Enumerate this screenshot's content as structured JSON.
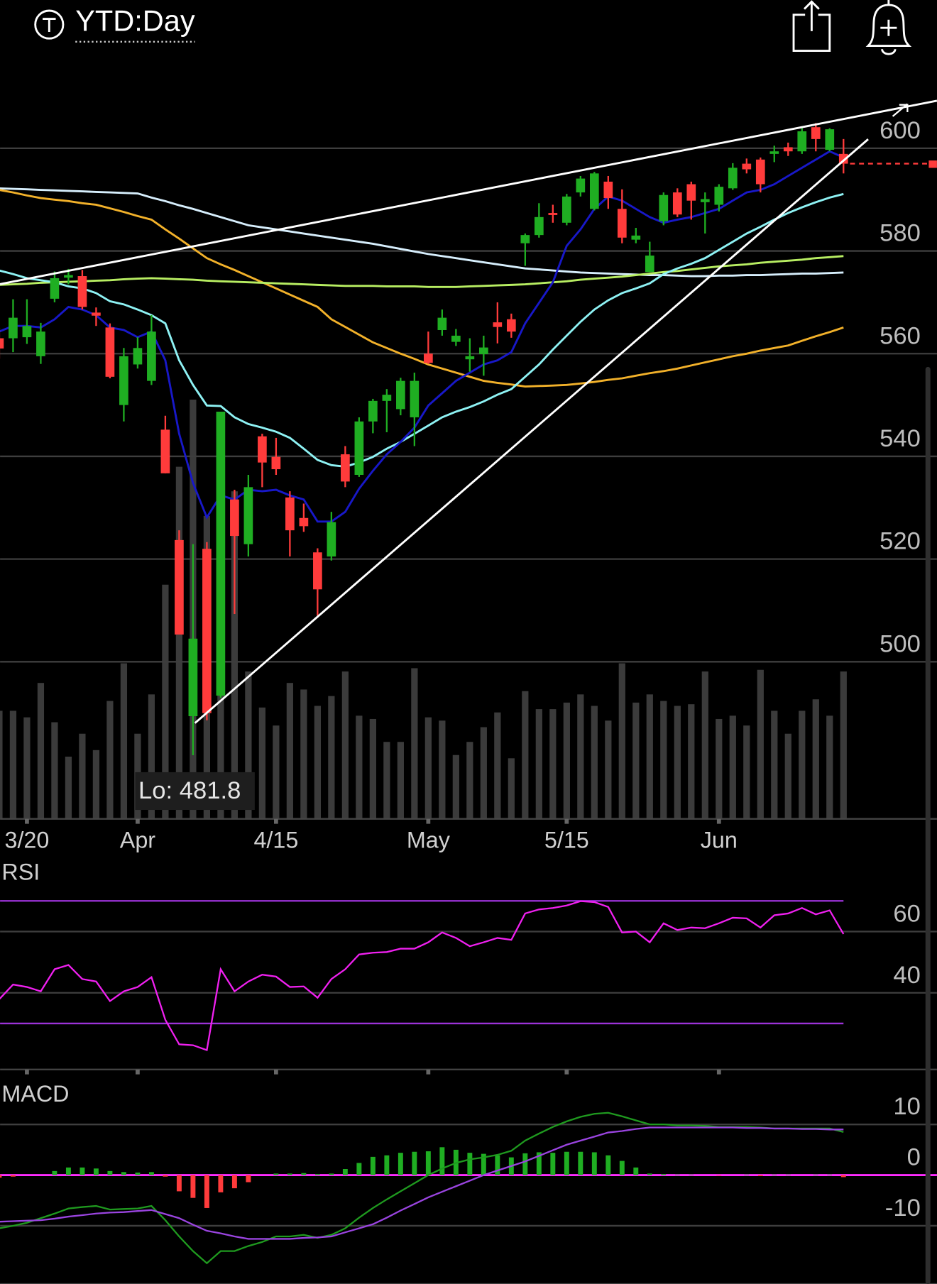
{
  "header": {
    "title": "YTD:Day"
  },
  "chart_data": [
    {
      "type": "candlestick",
      "categories": [
        null,
        null,
        "3/20",
        null,
        null,
        null,
        null,
        null,
        null,
        null,
        "Apr",
        null,
        null,
        null,
        null,
        null,
        null,
        null,
        null,
        null,
        "4/15",
        null,
        null,
        null,
        null,
        null,
        null,
        null,
        null,
        null,
        null,
        "May",
        null,
        null,
        null,
        null,
        null,
        null,
        null,
        null,
        null,
        "5/15",
        null,
        null,
        null,
        null,
        null,
        null,
        null,
        null,
        null,
        null,
        "Jun",
        null,
        null,
        null,
        null,
        null,
        null,
        null,
        null,
        null
      ],
      "open": [
        563,
        563,
        563.2,
        559.5,
        570.7,
        574.8,
        575.1,
        568,
        565.1,
        550,
        557.9,
        554.7,
        545.2,
        523.7,
        489.4,
        522,
        493.4,
        531.6,
        522.9,
        543.9,
        539.9,
        532,
        528,
        521.3,
        520.5,
        540.4,
        536.4,
        546.8,
        550.8,
        549.2,
        547.6,
        560,
        564.6,
        562.3,
        558.9,
        559.9,
        566.1,
        566.7,
        581.5,
        583.1,
        587.4,
        585.5,
        591.4,
        588.2,
        593.5,
        588.2,
        582.2,
        575.9,
        585.8,
        591.4,
        593,
        589.5,
        589,
        592.2,
        597,
        597.8,
        598.9,
        600.2,
        599.4,
        604.1,
        599.7,
        598.9
      ],
      "high": [
        565,
        570.6,
        570.6,
        566,
        576,
        576.5,
        576.3,
        569,
        565.9,
        561.1,
        563.2,
        567.5,
        547.9,
        525.6,
        522.9,
        523.3,
        548.7,
        533.5,
        536.4,
        544.4,
        543.6,
        533.2,
        530.8,
        522.1,
        529.2,
        542,
        547.6,
        551.2,
        553.1,
        555.3,
        556.3,
        564.3,
        568.6,
        564.8,
        563,
        563.5,
        570,
        567.8,
        583.4,
        589.3,
        589,
        591.1,
        594.6,
        595.4,
        594.6,
        592,
        584.5,
        581.8,
        591.4,
        592.2,
        593.5,
        591.4,
        593,
        597.1,
        598,
        598.2,
        600.5,
        601.1,
        604.1,
        604.9,
        603.9,
        601.8
      ],
      "low": [
        559,
        560.3,
        561.9,
        558,
        570,
        573.5,
        568.6,
        565.4,
        555.2,
        546.8,
        557.1,
        553.9,
        536.7,
        505.3,
        481.8,
        488.6,
        493,
        509.3,
        520.5,
        534,
        536.4,
        520.5,
        525.3,
        509,
        519.7,
        534,
        536,
        544.5,
        544.7,
        548,
        542,
        558,
        563.5,
        561.5,
        556.5,
        555.7,
        562,
        563.1,
        577.1,
        582.6,
        585.5,
        585,
        590.6,
        587.9,
        588.2,
        581.5,
        581.5,
        575.9,
        585,
        586.6,
        586.1,
        583.4,
        587.7,
        591.9,
        595.1,
        591.4,
        597.3,
        598.5,
        598.9,
        599.4,
        599.4,
        595.1
      ],
      "close": [
        561,
        567,
        565.4,
        564.3,
        574.7,
        575.3,
        569.1,
        567.4,
        555.5,
        559.5,
        561.1,
        564.3,
        536.7,
        505.3,
        504.5,
        490,
        548.7,
        524.5,
        534,
        538.8,
        537.5,
        525.6,
        526.4,
        514.1,
        527.2,
        535.1,
        546.8,
        550.8,
        552,
        554.7,
        554.7,
        558.2,
        567,
        563.5,
        559.5,
        561.2,
        565.2,
        564.3,
        583.1,
        586.6,
        587,
        590.6,
        594.1,
        595.1,
        590.3,
        582.6,
        583,
        579.1,
        590.9,
        587.1,
        589.8,
        590.1,
        592.5,
        596.2,
        595.9,
        593,
        599.4,
        599.4,
        603.3,
        601.8,
        603.7,
        597
      ],
      "volume": [
        66,
        66,
        62,
        83,
        59,
        38,
        52,
        42,
        72,
        95,
        52,
        76,
        143,
        215,
        256,
        185,
        230,
        200,
        90,
        68,
        57,
        83,
        79,
        69,
        75,
        90,
        63,
        61,
        47,
        47,
        92,
        62,
        60,
        39,
        47,
        56,
        65,
        37,
        78,
        67,
        67,
        71,
        76,
        69,
        60,
        95,
        71,
        76,
        72,
        69,
        70,
        90,
        61,
        63,
        57,
        91,
        66,
        52,
        66,
        73,
        63,
        90
      ],
      "series": [
        {
          "color": "#d6eefc",
          "values": [
            592.2,
            592.1,
            592.0,
            591.9,
            591.8,
            591.7,
            591.6,
            591.5,
            591.4,
            591.3,
            591.2,
            590.4,
            589.7,
            588.9,
            588.2,
            587.4,
            586.6,
            585.8,
            585.0,
            584.6,
            584.2,
            583.8,
            583.4,
            583.0,
            582.6,
            582.2,
            581.8,
            581.4,
            580.9,
            580.4,
            579.9,
            579.4,
            579.0,
            578.6,
            578.2,
            577.8,
            577.4,
            577.0,
            576.6,
            576.4,
            576.2,
            576.0,
            575.8,
            575.7,
            575.6,
            575.5,
            575.4,
            575.3,
            575.3,
            575.2,
            575.1,
            575.1,
            575.2,
            575.2,
            575.3,
            575.3,
            575.4,
            575.5,
            575.6,
            575.6,
            575.7,
            575.8
          ]
        },
        {
          "color": "#f2b12a",
          "values": [
            591.9,
            591.4,
            590.8,
            590.3,
            590.0,
            589.7,
            589.3,
            589.0,
            588.3,
            587.6,
            586.8,
            586.1,
            584.2,
            582.4,
            580.5,
            578.6,
            577.4,
            576.3,
            575.1,
            573.9,
            572.7,
            571.5,
            570.3,
            569.1,
            566.7,
            565.2,
            563.7,
            562.2,
            561.1,
            560.0,
            559.0,
            557.9,
            557.1,
            556.3,
            555.5,
            554.7,
            554.3,
            554.0,
            553.6,
            553.7,
            553.8,
            553.9,
            554.2,
            554.5,
            554.9,
            555.2,
            555.7,
            556.2,
            556.6,
            557.1,
            557.7,
            558.3,
            558.9,
            559.5,
            560.0,
            560.6,
            561.1,
            561.6,
            562.5,
            563.4,
            564.2,
            565.1
          ]
        },
        {
          "color": "#b8ee62",
          "values": [
            573.4,
            573.5,
            573.6,
            573.8,
            573.9,
            574.0,
            574.1,
            574.2,
            574.3,
            574.5,
            574.6,
            574.7,
            574.6,
            574.5,
            574.4,
            574.2,
            574.1,
            574.0,
            573.9,
            573.8,
            573.7,
            573.6,
            573.5,
            573.4,
            573.3,
            573.2,
            573.2,
            573.2,
            573.1,
            573.1,
            573.1,
            573.0,
            573.0,
            573.0,
            573.1,
            573.2,
            573.3,
            573.4,
            573.5,
            573.7,
            573.9,
            574.1,
            574.4,
            574.6,
            574.8,
            575.0,
            575.3,
            575.6,
            575.9,
            576.1,
            576.4,
            576.7,
            577.0,
            577.2,
            577.4,
            577.7,
            577.9,
            578.1,
            578.3,
            578.6,
            578.8,
            579.0
          ]
        },
        {
          "color": "#8ef2f4",
          "values": [
            576.2,
            575.5,
            574.7,
            574.3,
            573.9,
            573.1,
            572.7,
            571.8,
            570.2,
            569.6,
            568.6,
            567.5,
            565.9,
            558.7,
            553.9,
            549.9,
            549.8,
            547.6,
            546.3,
            545.6,
            544.8,
            543.6,
            541.5,
            539.3,
            538.3,
            538.0,
            538.8,
            539.9,
            541.5,
            542.8,
            544.4,
            546.0,
            547.6,
            548.7,
            549.6,
            550.7,
            552.0,
            553.1,
            555.5,
            557.9,
            560.8,
            563.5,
            566.2,
            568.6,
            570.4,
            571.8,
            572.7,
            573.7,
            575.5,
            576.6,
            577.5,
            578.6,
            580.2,
            581.8,
            583.4,
            584.7,
            586.1,
            587.4,
            588.5,
            589.5,
            590.4,
            591.1
          ]
        },
        {
          "color": "#1818c8",
          "values": [
            564.3,
            565.4,
            565.4,
            565.1,
            566.7,
            569.1,
            568.6,
            567.5,
            565.1,
            564.6,
            563.2,
            564.3,
            558.7,
            544.4,
            534.8,
            528.1,
            532.4,
            531.6,
            533.5,
            533.2,
            533.5,
            532.4,
            531.6,
            527.3,
            527.3,
            529.2,
            533.7,
            537.2,
            540.4,
            542.8,
            545.6,
            549.9,
            552.3,
            554.7,
            556.3,
            557.9,
            558.7,
            560.3,
            565.9,
            569.9,
            573.9,
            581.0,
            584.2,
            588.2,
            590.6,
            589.8,
            588.2,
            586.6,
            585.5,
            586.1,
            586.6,
            587.4,
            588.2,
            589.8,
            591.4,
            591.9,
            593.0,
            594.6,
            596.2,
            597.8,
            599.4,
            598.2
          ]
        }
      ],
      "up_color": "#1fae22",
      "down_color": "#ff3b3b",
      "volume_color": "#3b3b3b",
      "ylim": [
        469.4,
        615
      ],
      "yticks": [
        500,
        520,
        540,
        560,
        580,
        600
      ],
      "grid": true,
      "annotations": [
        "Lo: 481.8"
      ]
    },
    {
      "type": "line",
      "title": "RSI",
      "series": [
        {
          "color": "#f020f0",
          "values": [
            37.9,
            42.7,
            41.9,
            40.5,
            47.7,
            49.1,
            44.5,
            43.7,
            37.3,
            40.5,
            41.9,
            45.1,
            31.2,
            23.2,
            22.9,
            21.3,
            47.7,
            40.5,
            43.7,
            45.9,
            45.3,
            41.9,
            42.1,
            38.4,
            44.5,
            47.7,
            52.5,
            53.1,
            53.3,
            54.4,
            54.4,
            56.5,
            59.7,
            57.9,
            55.2,
            56.5,
            57.9,
            57.3,
            65.9,
            67.2,
            67.7,
            68.5,
            69.9,
            69.6,
            68.0,
            59.7,
            60.0,
            56.5,
            62.7,
            60.5,
            61.3,
            61.1,
            62.7,
            64.5,
            64.3,
            61.3,
            65.3,
            65.9,
            67.7,
            65.6,
            66.9,
            59.2
          ]
        }
      ],
      "levels": [
        30,
        70
      ],
      "level_color": "#9c32d8",
      "ylim": [
        15,
        85
      ],
      "yticks": [
        40,
        60
      ],
      "grid": true
    },
    {
      "type": "macd",
      "title": "MACD",
      "series": [
        {
          "color": "#1f9a1f",
          "values": [
            -10.5,
            -10.0,
            -9.4,
            -8.5,
            -7.6,
            -6.6,
            -6.3,
            -6.1,
            -6.8,
            -6.7,
            -6.6,
            -6.1,
            -8.9,
            -12.1,
            -15.0,
            -17.4,
            -15.0,
            -15.0,
            -14.0,
            -13.2,
            -12.1,
            -12.1,
            -11.8,
            -12.4,
            -11.8,
            -10.5,
            -8.4,
            -6.5,
            -4.8,
            -3.2,
            -1.6,
            0,
            1.3,
            2.4,
            3.1,
            3.5,
            4.0,
            4.8,
            6.8,
            8.2,
            9.5,
            10.6,
            11.5,
            12.1,
            12.3,
            11.6,
            10.8,
            10.0,
            10.0,
            9.8,
            9.8,
            9.7,
            9.5,
            9.5,
            9.5,
            9.4,
            9.2,
            9.2,
            9.2,
            9.2,
            9.2,
            8.5
          ]
        },
        {
          "color": "#9a44e0",
          "values": [
            -9.2,
            -9.1,
            -9.0,
            -8.9,
            -8.6,
            -8.2,
            -7.9,
            -7.6,
            -7.4,
            -7.3,
            -7.1,
            -6.9,
            -7.7,
            -8.5,
            -9.8,
            -11.0,
            -11.5,
            -12.1,
            -12.6,
            -12.6,
            -12.6,
            -12.6,
            -12.4,
            -12.3,
            -12.1,
            -11.3,
            -10.5,
            -9.7,
            -8.4,
            -7.0,
            -5.7,
            -4.4,
            -3.3,
            -2.2,
            -1.1,
            0,
            0.9,
            1.8,
            2.7,
            3.8,
            4.9,
            6.0,
            6.8,
            7.6,
            8.4,
            8.7,
            9.1,
            9.4,
            9.4,
            9.4,
            9.4,
            9.4,
            9.4,
            9.4,
            9.3,
            9.3,
            9.2,
            9.2,
            9.1,
            9.1,
            9.0,
            9.0
          ]
        }
      ],
      "histogram": [
        -0.5,
        -0.3,
        0,
        0,
        0.8,
        1.5,
        1.5,
        1.3,
        0.8,
        0.6,
        0.5,
        0.6,
        -0.3,
        -3.2,
        -4.5,
        -6.5,
        -3.4,
        -2.6,
        -1.4,
        0,
        0.3,
        0.3,
        0.4,
        0.2,
        0.3,
        1.2,
        2.4,
        3.6,
        3.9,
        4.4,
        4.6,
        4.7,
        5.5,
        5.0,
        4.4,
        4.2,
        3.9,
        3.5,
        4.3,
        4.5,
        4.4,
        4.6,
        4.6,
        4.5,
        3.9,
        2.8,
        1.5,
        0.3,
        0.2,
        0.1,
        0.1,
        0,
        -0.1,
        0,
        0.1,
        -0.2,
        0.1,
        0.1,
        0,
        0.1,
        0.1,
        -0.4
      ],
      "up_color": "#1fae22",
      "down_color": "#ff3b3b",
      "zero_color": "#ff2cff",
      "ylim": [
        -21.5,
        19.4
      ],
      "yticks": [
        -10,
        0,
        10
      ],
      "grid": true
    }
  ]
}
